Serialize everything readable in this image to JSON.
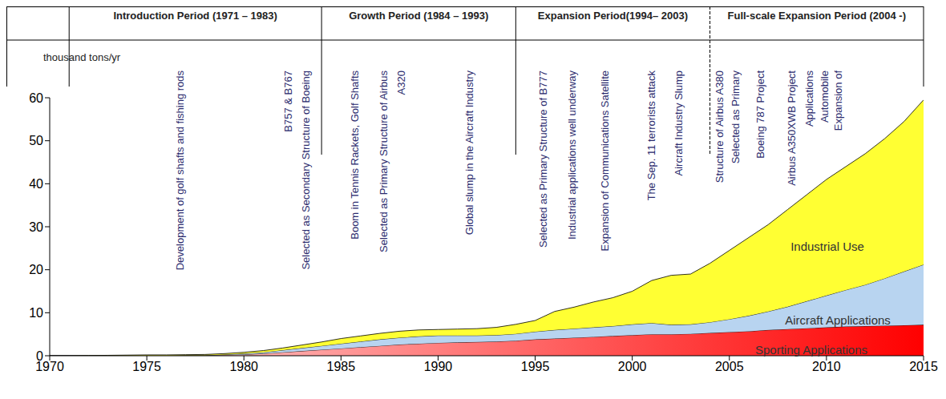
{
  "chart_data": {
    "type": "area",
    "stacked": true,
    "grid": false,
    "ylabel": "thousand tons/yr",
    "x": [
      1970,
      1971,
      1972,
      1973,
      1974,
      1975,
      1976,
      1977,
      1978,
      1979,
      1980,
      1981,
      1982,
      1983,
      1984,
      1985,
      1986,
      1987,
      1988,
      1989,
      1990,
      1991,
      1992,
      1993,
      1994,
      1995,
      1996,
      1997,
      1998,
      1999,
      2000,
      2001,
      2002,
      2003,
      2004,
      2005,
      2006,
      2007,
      2008,
      2009,
      2010,
      2011,
      2012,
      2013,
      2014,
      2015
    ],
    "xlim": [
      1970,
      2015
    ],
    "xticks": [
      1970,
      1975,
      1980,
      1985,
      1990,
      1995,
      2000,
      2005,
      2010,
      2015
    ],
    "ylim": [
      0,
      60
    ],
    "yticks": [
      0,
      10,
      20,
      30,
      40,
      50,
      60
    ],
    "series": [
      {
        "name": "Sporting Applications",
        "color": "#ff0000",
        "values": [
          0,
          0,
          0,
          0,
          0,
          0,
          0,
          0.1,
          0.1,
          0.2,
          0.3,
          0.5,
          0.8,
          1.1,
          1.4,
          1.7,
          2.0,
          2.3,
          2.6,
          2.8,
          3.0,
          3.1,
          3.2,
          3.3,
          3.5,
          3.8,
          4.0,
          4.2,
          4.4,
          4.6,
          4.8,
          5.0,
          5.0,
          5.1,
          5.3,
          5.5,
          5.7,
          6.0,
          6.2,
          6.4,
          6.6,
          6.8,
          6.9,
          7.0,
          7.1,
          7.2
        ]
      },
      {
        "name": "Aircraft Applications",
        "color": "#b8d4f0",
        "values": [
          0,
          0,
          0,
          0,
          0,
          0,
          0,
          0,
          0,
          0.1,
          0.2,
          0.3,
          0.5,
          0.7,
          0.9,
          1.1,
          1.3,
          1.5,
          1.6,
          1.7,
          1.7,
          1.6,
          1.5,
          1.5,
          1.6,
          1.8,
          2.0,
          2.1,
          2.2,
          2.3,
          2.5,
          2.6,
          2.2,
          2.2,
          2.5,
          3.0,
          3.6,
          4.3,
          5.2,
          6.3,
          7.4,
          8.5,
          9.6,
          11.0,
          12.5,
          14.0
        ]
      },
      {
        "name": "Industrial Use",
        "color": "#ffff33",
        "values": [
          0,
          0,
          0.05,
          0.1,
          0.15,
          0.2,
          0.2,
          0.15,
          0.2,
          0.2,
          0.3,
          0.4,
          0.5,
          0.7,
          0.9,
          1.2,
          1.3,
          1.4,
          1.5,
          1.5,
          1.4,
          1.5,
          1.6,
          1.8,
          2.2,
          2.6,
          4.3,
          5.0,
          5.9,
          6.6,
          7.7,
          9.9,
          11.5,
          11.7,
          13.7,
          16.0,
          18.2,
          20.2,
          22.6,
          24.8,
          27.0,
          28.7,
          30.5,
          32.5,
          34.9,
          38.3
        ]
      }
    ],
    "periods": [
      {
        "label": "Introduction Period (1971 – 1983)",
        "start": 1971
      },
      {
        "label": "Growth Period (1984 – 1993)",
        "start": 1984
      },
      {
        "label": "Expansion Period(1994– 2003)",
        "start": 1994
      },
      {
        "label": "Full-scale Expansion Period (2004 -)",
        "start": 2004
      }
    ],
    "annotations": [
      {
        "x": 1976.7,
        "text": "Development of golf shafts and fishing rods"
      },
      {
        "x": 1982.3,
        "text": "B757 & B767"
      },
      {
        "x": 1983.2,
        "text": "Selected as Secondary Structure of Boeing"
      },
      {
        "x": 1985.7,
        "text": "Boom in Tennis Rackets, Golf Shafts"
      },
      {
        "x": 1987.2,
        "text": "Selected as Primary Structure of Airbus"
      },
      {
        "x": 1988.1,
        "text": "A320"
      },
      {
        "x": 1991.6,
        "text": "Global slump in the Aircraft Industry"
      },
      {
        "x": 1995.4,
        "text": "Selected as Primary Structure of B777"
      },
      {
        "x": 1996.9,
        "text": "Industrial applications well underway"
      },
      {
        "x": 1998.6,
        "text": "Expansion of Communications Satellite"
      },
      {
        "x": 2001.0,
        "text": "The Sep. 11 terrorists attack"
      },
      {
        "x": 2002.4,
        "text": "Aircraft Industry Slump"
      },
      {
        "x": 2004.5,
        "text": "Structure of Airbus A380"
      },
      {
        "x": 2005.3,
        "text": "Selected as Primary"
      },
      {
        "x": 2006.6,
        "text": "Boeing 787 Project"
      },
      {
        "x": 2008.2,
        "text": "Airbus A350XWB Project"
      },
      {
        "x": 2009.1,
        "text": "Applications"
      },
      {
        "x": 2009.9,
        "text": "Automobile"
      },
      {
        "x": 2010.6,
        "text": "Expansion of"
      }
    ]
  }
}
